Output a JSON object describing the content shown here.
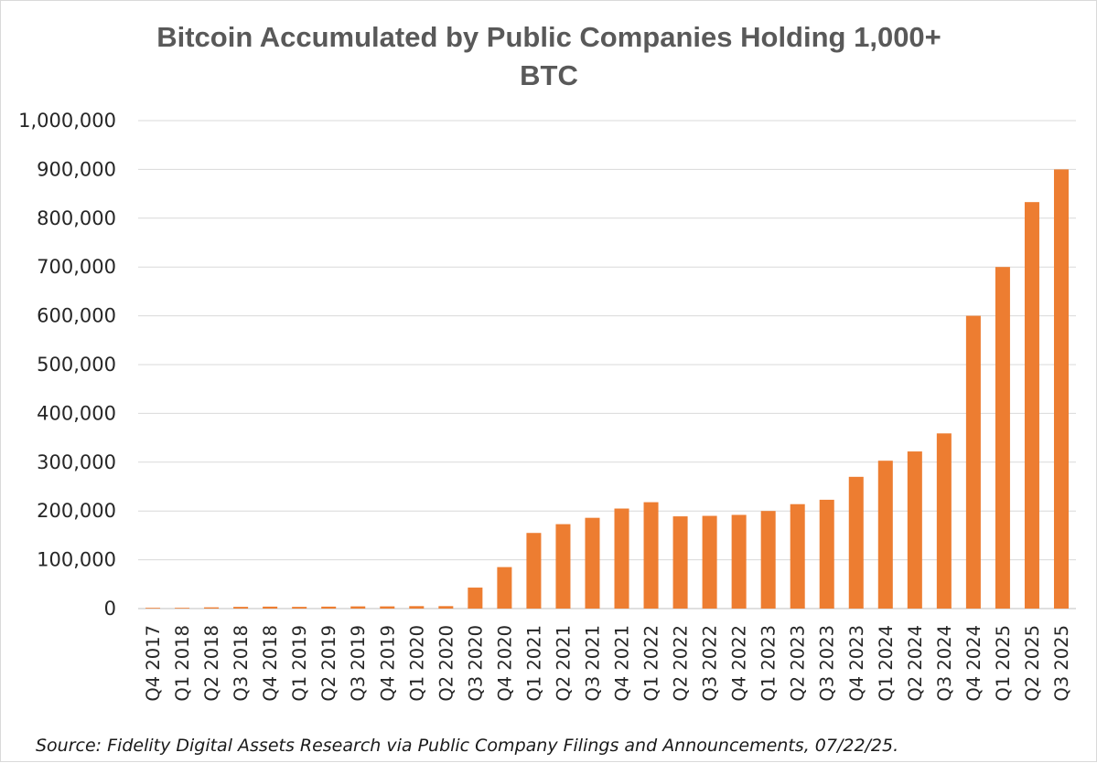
{
  "chart_data": {
    "type": "bar",
    "title_lines": [
      "Bitcoin Accumulated by Public Companies Holding 1,000+",
      "BTC"
    ],
    "xlabel": "",
    "ylabel": "",
    "ylim": [
      0,
      1000000
    ],
    "ytick_values": [
      0,
      100000,
      200000,
      300000,
      400000,
      500000,
      600000,
      700000,
      800000,
      900000,
      1000000
    ],
    "ytick_labels": [
      "0",
      "100,000",
      "200,000",
      "300,000",
      "400,000",
      "500,000",
      "600,000",
      "700,000",
      "800,000",
      "900,000",
      "1,000,000"
    ],
    "grid": true,
    "bar_color": "#ED7D31",
    "categories": [
      "Q4 2017",
      "Q1 2018",
      "Q2 2018",
      "Q3 2018",
      "Q4 2018",
      "Q1 2019",
      "Q2 2019",
      "Q3 2019",
      "Q4 2019",
      "Q1 2020",
      "Q2 2020",
      "Q3 2020",
      "Q4 2020",
      "Q1 2021",
      "Q2 2021",
      "Q3 2021",
      "Q4 2021",
      "Q1 2022",
      "Q2 2022",
      "Q3 2022",
      "Q4 2022",
      "Q1 2023",
      "Q2 2023",
      "Q3 2023",
      "Q4 2023",
      "Q1 2024",
      "Q2 2024",
      "Q3 2024",
      "Q4 2024",
      "Q1 2025",
      "Q2 2025",
      "Q3 2025"
    ],
    "values": [
      1500,
      1500,
      2500,
      3500,
      4000,
      3500,
      4000,
      4500,
      4500,
      5000,
      5000,
      43000,
      85000,
      155000,
      173000,
      186000,
      205000,
      218000,
      189000,
      190000,
      192000,
      200000,
      214000,
      223000,
      270000,
      303000,
      322000,
      359000,
      600000,
      700000,
      833000,
      900000
    ]
  },
  "source": "Source: Fidelity Digital Assets Research via Public Company Filings and Announcements, 07/22/25."
}
